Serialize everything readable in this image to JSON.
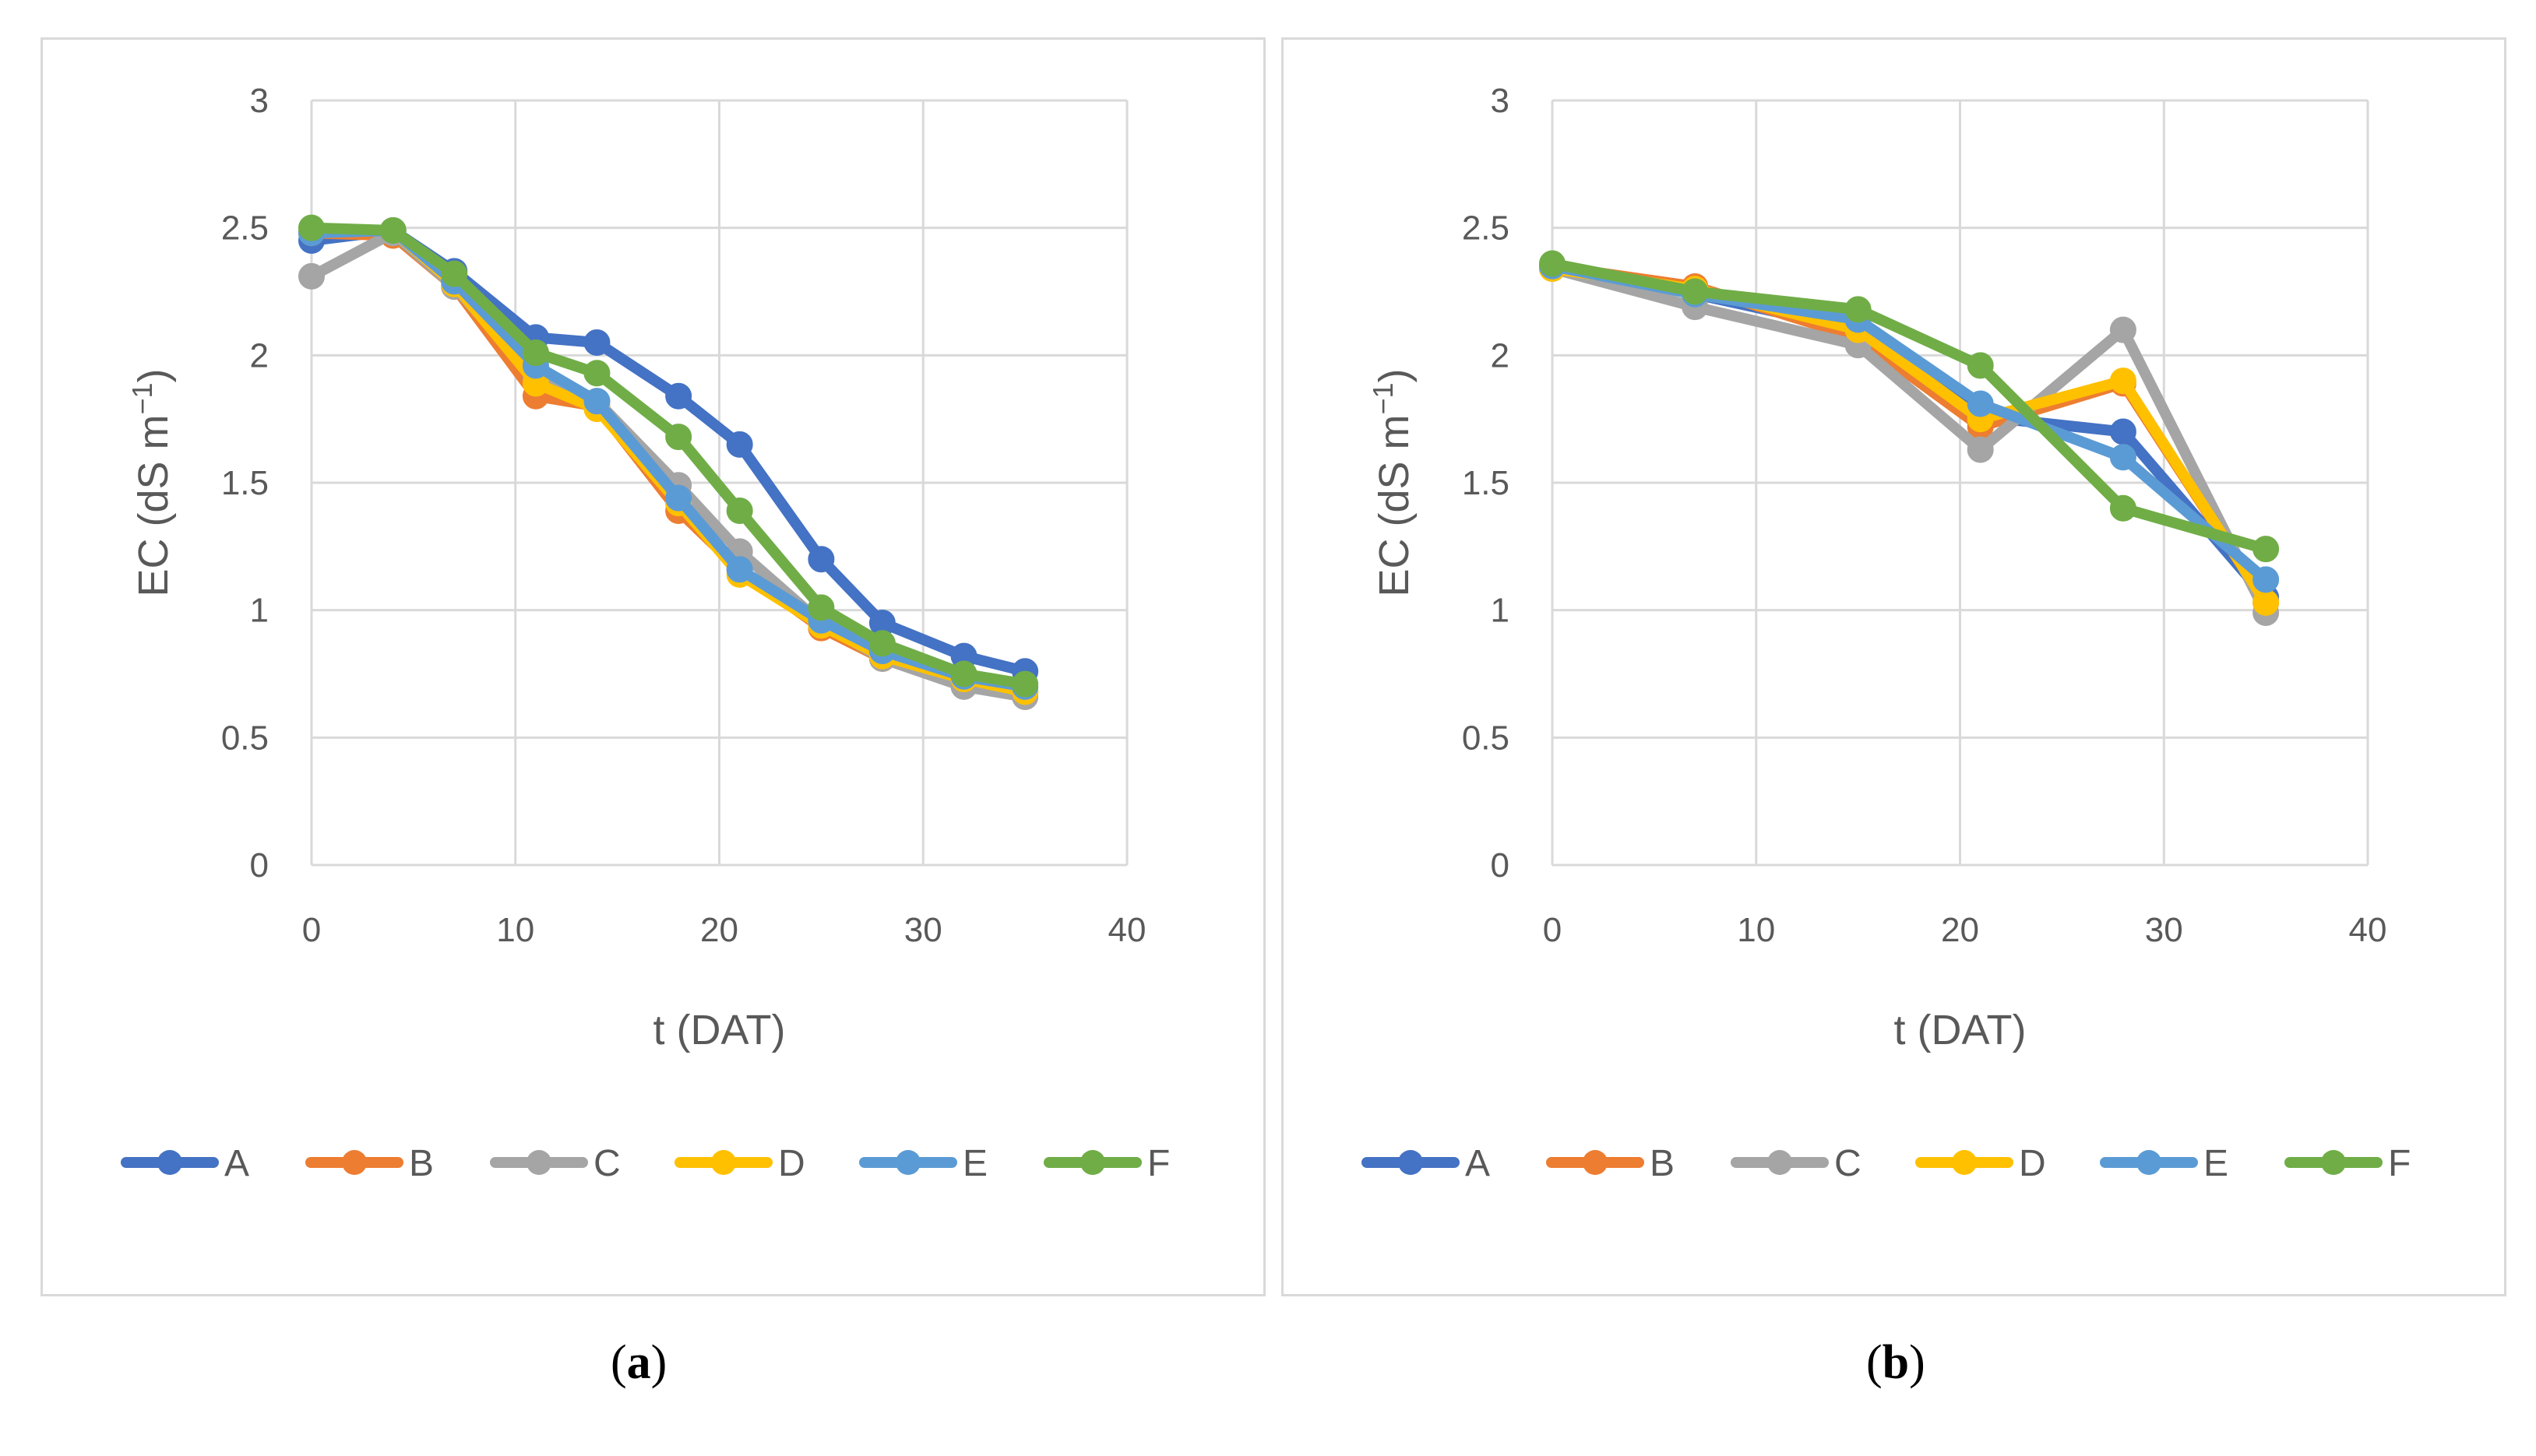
{
  "colors": {
    "A": "#4472C4",
    "B": "#ED7D31",
    "C": "#A5A5A5",
    "D": "#FFC000",
    "E": "#5B9BD5",
    "F": "#70AD47",
    "grid": "#d9d9d9",
    "text": "#595959"
  },
  "chart_data": [
    {
      "id": "a",
      "type": "line",
      "caption_open": "(",
      "caption_letter": "a",
      "caption_close": ")",
      "xlabel": "t (DAT)",
      "ylabel_main": "EC (dS m",
      "ylabel_sup": "−1",
      "ylabel_end": ")",
      "xlim": [
        0,
        40
      ],
      "ylim": [
        0,
        3
      ],
      "xticks": [
        "0",
        "10",
        "20",
        "30",
        "40"
      ],
      "yticks": [
        "0",
        "0.5",
        "1",
        "1.5",
        "2",
        "2.5",
        "3"
      ],
      "grid": true,
      "legend_position": "bottom",
      "x": [
        0,
        4,
        7,
        11,
        14,
        18,
        21,
        25,
        28,
        32,
        35
      ],
      "series": [
        {
          "name": "A",
          "values": [
            2.45,
            2.49,
            2.33,
            2.07,
            2.05,
            1.84,
            1.65,
            1.2,
            0.95,
            0.82,
            0.76
          ]
        },
        {
          "name": "B",
          "values": [
            2.48,
            2.47,
            2.27,
            1.84,
            1.8,
            1.39,
            1.16,
            0.93,
            0.81,
            0.72,
            0.68
          ]
        },
        {
          "name": "C",
          "values": [
            2.31,
            2.48,
            2.27,
            1.91,
            1.82,
            1.49,
            1.23,
            0.95,
            0.81,
            0.7,
            0.66
          ]
        },
        {
          "name": "D",
          "values": [
            2.49,
            2.49,
            2.28,
            1.89,
            1.79,
            1.42,
            1.14,
            0.94,
            0.82,
            0.73,
            0.68
          ]
        },
        {
          "name": "E",
          "values": [
            2.48,
            2.49,
            2.29,
            1.96,
            1.82,
            1.44,
            1.16,
            0.96,
            0.84,
            0.74,
            0.7
          ]
        },
        {
          "name": "F",
          "values": [
            2.5,
            2.49,
            2.32,
            2.01,
            1.93,
            1.68,
            1.39,
            1.01,
            0.87,
            0.75,
            0.71
          ]
        }
      ]
    },
    {
      "id": "b",
      "type": "line",
      "caption_open": "(",
      "caption_letter": "b",
      "caption_close": ")",
      "xlabel": "t (DAT)",
      "ylabel_main": "EC (dS m",
      "ylabel_sup": "−1",
      "ylabel_end": ")",
      "xlim": [
        0,
        40
      ],
      "ylim": [
        0,
        3
      ],
      "xticks": [
        "0",
        "10",
        "20",
        "30",
        "40"
      ],
      "yticks": [
        "0",
        "0.5",
        "1",
        "1.5",
        "2",
        "2.5",
        "3"
      ],
      "grid": true,
      "legend_position": "bottom",
      "x": [
        0,
        7,
        15,
        21,
        28,
        35
      ],
      "series": [
        {
          "name": "A",
          "values": [
            2.35,
            2.24,
            2.1,
            1.76,
            1.7,
            1.05
          ]
        },
        {
          "name": "B",
          "values": [
            2.35,
            2.27,
            2.07,
            1.72,
            1.89,
            1.03
          ]
        },
        {
          "name": "C",
          "values": [
            2.34,
            2.19,
            2.04,
            1.63,
            2.1,
            0.99
          ]
        },
        {
          "name": "D",
          "values": [
            2.34,
            2.26,
            2.1,
            1.75,
            1.9,
            1.03
          ]
        },
        {
          "name": "E",
          "values": [
            2.35,
            2.24,
            2.14,
            1.81,
            1.6,
            1.12
          ]
        },
        {
          "name": "F",
          "values": [
            2.36,
            2.25,
            2.18,
            1.96,
            1.4,
            1.24
          ]
        }
      ]
    }
  ]
}
